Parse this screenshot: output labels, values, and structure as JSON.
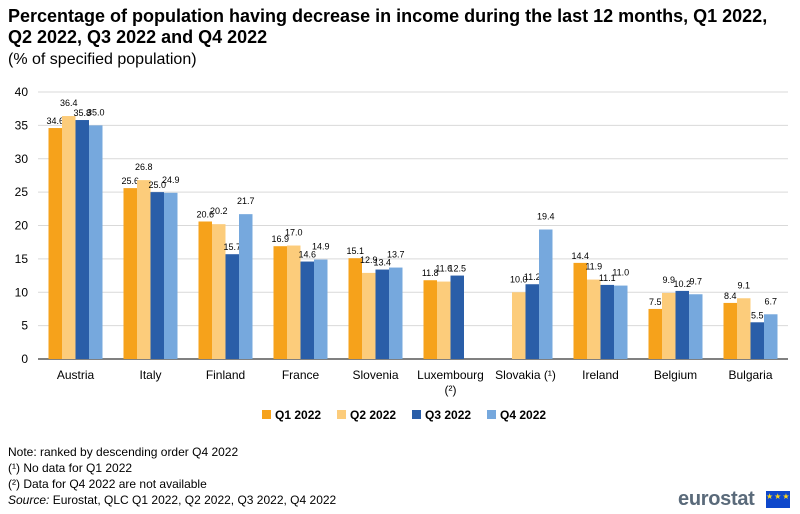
{
  "title": "Percentage of population having decrease in income during the last 12 months,  Q1 2022, Q2 2022, Q3 2022 and Q4 2022",
  "subtitle": "(% of specified population)",
  "notes": {
    "line1": "Note: ranked by descending order Q4 2022",
    "line2": "(¹) No data for  Q1 2022",
    "line3": "(²) Data for Q4 2022 are not available",
    "source_label": "Source:",
    "source_text": " Eurostat, QLC Q1 2022, Q2 2022, Q3 2022, Q4 2022"
  },
  "logo": {
    "text": "eurostat",
    "flag_stars": "★★★"
  },
  "chart_data": {
    "type": "bar",
    "categories": [
      "Austria",
      "Italy",
      "Finland",
      "France",
      "Slovenia",
      "Luxembourg\n(²)",
      "Slovakia (¹)",
      "Ireland",
      "Belgium",
      "Bulgaria"
    ],
    "series": [
      {
        "name": "Q1 2022",
        "color": "#f6a21b",
        "values": [
          34.6,
          25.6,
          20.6,
          16.9,
          15.1,
          11.8,
          null,
          14.4,
          7.5,
          8.4
        ]
      },
      {
        "name": "Q2 2022",
        "color": "#fccc7b",
        "values": [
          36.4,
          26.8,
          20.2,
          17.0,
          12.9,
          11.6,
          10.0,
          11.9,
          9.9,
          9.1
        ]
      },
      {
        "name": "Q3 2022",
        "color": "#2a5ea8",
        "values": [
          35.8,
          25.0,
          15.7,
          14.6,
          13.4,
          12.5,
          11.2,
          11.1,
          10.2,
          5.5
        ]
      },
      {
        "name": "Q4 2022",
        "color": "#76a8dd",
        "values": [
          35.0,
          24.9,
          21.7,
          14.9,
          13.7,
          null,
          19.4,
          11.0,
          9.7,
          6.7
        ]
      }
    ],
    "ylim": [
      0,
      40
    ],
    "yticks": [
      0,
      5,
      10,
      15,
      20,
      25,
      30,
      35,
      40
    ],
    "grid": true,
    "legend_position": "bottom"
  }
}
